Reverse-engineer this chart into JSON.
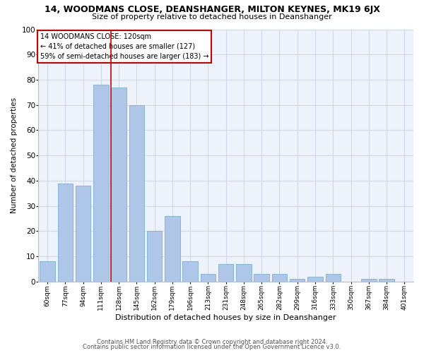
{
  "title": "14, WOODMANS CLOSE, DEANSHANGER, MILTON KEYNES, MK19 6JX",
  "subtitle": "Size of property relative to detached houses in Deanshanger",
  "xlabel": "Distribution of detached houses by size in Deanshanger",
  "ylabel": "Number of detached properties",
  "categories": [
    "60sqm",
    "77sqm",
    "94sqm",
    "111sqm",
    "128sqm",
    "145sqm",
    "162sqm",
    "179sqm",
    "196sqm",
    "213sqm",
    "231sqm",
    "248sqm",
    "265sqm",
    "282sqm",
    "299sqm",
    "316sqm",
    "333sqm",
    "350sqm",
    "367sqm",
    "384sqm",
    "401sqm"
  ],
  "values": [
    8,
    39,
    38,
    78,
    77,
    70,
    20,
    26,
    8,
    3,
    7,
    7,
    3,
    3,
    1,
    2,
    3,
    0,
    1,
    1,
    0
  ],
  "bar_color": "#aec6e8",
  "bar_edge_color": "#7aafd4",
  "vline_index": 3.55,
  "vline_color": "#cc0000",
  "annotation_lines": [
    "14 WOODMANS CLOSE: 120sqm",
    "← 41% of detached houses are smaller (127)",
    "59% of semi-detached houses are larger (183) →"
  ],
  "annotation_box_color": "#cc0000",
  "ylim": [
    0,
    100
  ],
  "yticks": [
    0,
    10,
    20,
    30,
    40,
    50,
    60,
    70,
    80,
    90,
    100
  ],
  "grid_color": "#d0d8e8",
  "bg_color": "#eef2fa",
  "footer1": "Contains HM Land Registry data © Crown copyright and database right 2024.",
  "footer2": "Contains public sector information licensed under the Open Government Licence v3.0."
}
